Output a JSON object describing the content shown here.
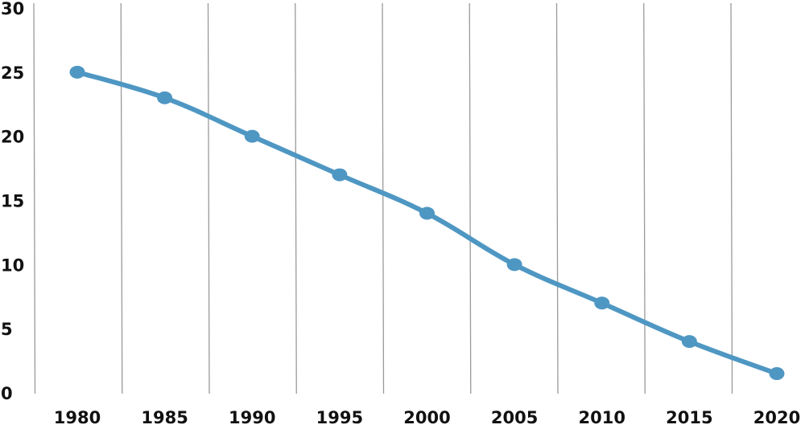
{
  "chart_data": {
    "type": "line",
    "title": "",
    "xlabel": "",
    "ylabel": "",
    "x": [
      "1980",
      "1985",
      "1990",
      "1995",
      "2000",
      "2005",
      "2010",
      "2015",
      "2020"
    ],
    "series": [
      {
        "values": [
          25,
          23,
          20,
          17,
          14,
          10,
          7,
          4,
          1.5
        ]
      }
    ],
    "ylim": [
      0,
      30
    ],
    "yticks": [
      "0",
      "5",
      "10",
      "15",
      "20",
      "25",
      "30"
    ],
    "grid": {
      "vertical": true,
      "horizontal": false
    },
    "legend": "none",
    "colors": {
      "line": "#4f97c3",
      "marker": "#4f97c3",
      "grid": "#9a9a9a",
      "text": "#111111",
      "background": "#ffffff"
    }
  }
}
